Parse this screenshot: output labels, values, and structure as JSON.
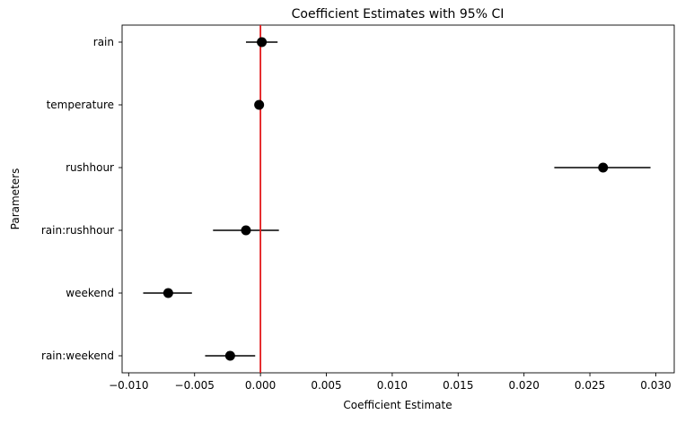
{
  "chart_data": {
    "type": "scatter",
    "subtype": "coefficient-plot",
    "title": "Coefficient Estimates with 95% CI",
    "xlabel": "Coefficient Estimate",
    "ylabel": "Parameters",
    "xlim": [
      -0.0105,
      0.0314
    ],
    "x_ticks": [
      -0.01,
      -0.005,
      0.0,
      0.005,
      0.01,
      0.015,
      0.02,
      0.025,
      0.03
    ],
    "x_tick_labels": [
      "−0.010",
      "−0.005",
      "0.000",
      "0.005",
      "0.010",
      "0.015",
      "0.020",
      "0.025",
      "0.030"
    ],
    "categories": [
      "rain",
      "temperature",
      "rushhour",
      "rain:rushhour",
      "weekend",
      "rain:weekend"
    ],
    "estimates": [
      0.0001,
      -0.0001,
      0.026,
      -0.0011,
      -0.007,
      -0.0023
    ],
    "ci_lower": [
      -0.0011,
      -0.0001,
      0.0223,
      -0.0036,
      -0.0089,
      -0.0042
    ],
    "ci_upper": [
      0.0013,
      -0.0001,
      0.0296,
      0.0014,
      -0.0052,
      -0.0004
    ],
    "reference_line": {
      "x": 0.0,
      "color": "#e31a1c"
    },
    "point_color": "#000000",
    "grid": false,
    "legend": "none"
  }
}
